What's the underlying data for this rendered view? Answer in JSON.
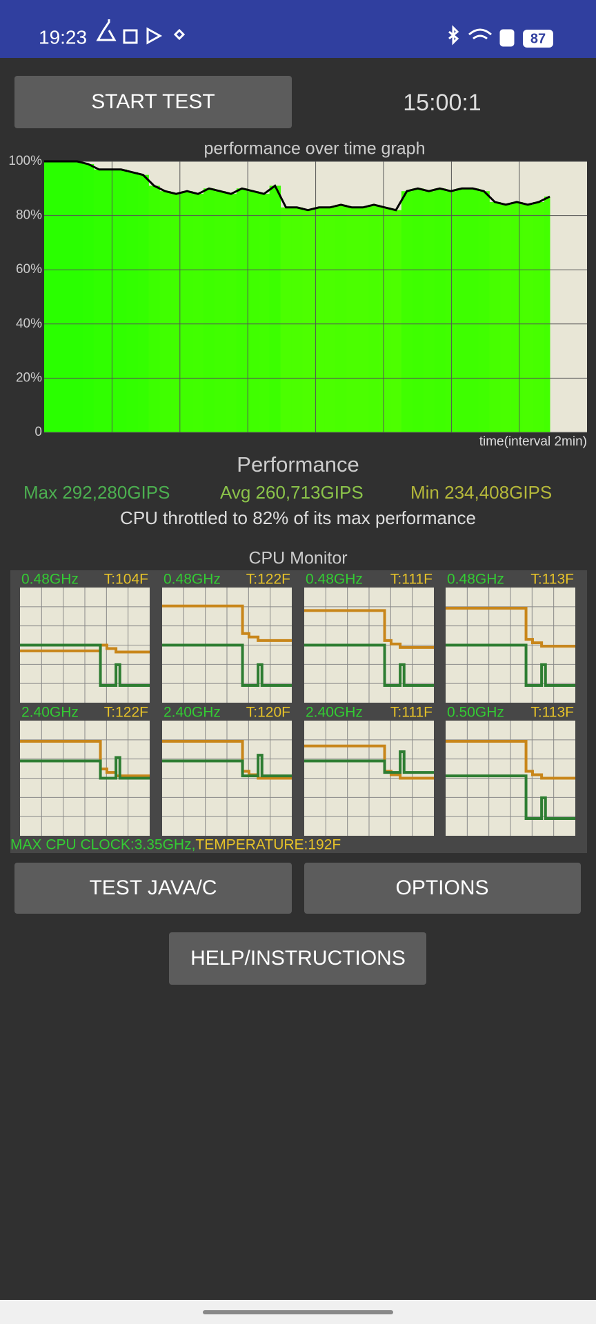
{
  "status_bar": {
    "time": "19:23",
    "battery": "87"
  },
  "buttons": {
    "start": "START TEST",
    "java": "TEST JAVA/C",
    "options": "OPTIONS",
    "help": "HELP/INSTRUCTIONS"
  },
  "timer": "15:00:1",
  "chart_data": {
    "type": "area",
    "title": "performance over time graph",
    "x_label": "time(interval 2min)",
    "ylim": [
      0,
      100
    ],
    "yticks": [
      0,
      {
        "value": 20,
        "label": "20%"
      },
      {
        "value": 40,
        "label": "40%"
      },
      {
        "value": 60,
        "label": "60%"
      },
      {
        "value": 80,
        "label": "80%"
      },
      {
        "value": 100,
        "label": "100%"
      }
    ],
    "values": [
      100,
      100,
      100,
      100,
      99,
      97,
      97,
      97,
      96,
      95,
      91,
      89,
      88,
      89,
      88,
      90,
      89,
      88,
      90,
      89,
      88,
      91,
      83,
      83,
      82,
      83,
      83,
      84,
      83,
      83,
      84,
      83,
      82,
      89,
      90,
      89,
      90,
      89,
      90,
      90,
      89,
      85,
      84,
      85,
      84,
      85,
      87
    ],
    "color": "#000000",
    "grid": true
  },
  "performance": {
    "heading": "Performance",
    "max": "Max 292,280GIPS",
    "avg": "Avg 260,713GIPS",
    "min": "Min 234,408GIPS",
    "throttle": "CPU throttled to 82% of its max performance"
  },
  "cpu_monitor": {
    "title": "CPU Monitor",
    "cores": [
      {
        "freq": "0.48GHz",
        "temp": "T:104F"
      },
      {
        "freq": "0.48GHz",
        "temp": "T:122F"
      },
      {
        "freq": "0.48GHz",
        "temp": "T:111F"
      },
      {
        "freq": "0.48GHz",
        "temp": "T:113F"
      },
      {
        "freq": "2.40GHz",
        "temp": "T:122F"
      },
      {
        "freq": "2.40GHz",
        "temp": "T:120F"
      },
      {
        "freq": "2.40GHz",
        "temp": "T:111F"
      },
      {
        "freq": "0.50GHz",
        "temp": "T:113F"
      }
    ],
    "max_clock": "MAX CPU CLOCK:3.35GHz,",
    "max_temp": "TEMPERATURE:192F"
  }
}
